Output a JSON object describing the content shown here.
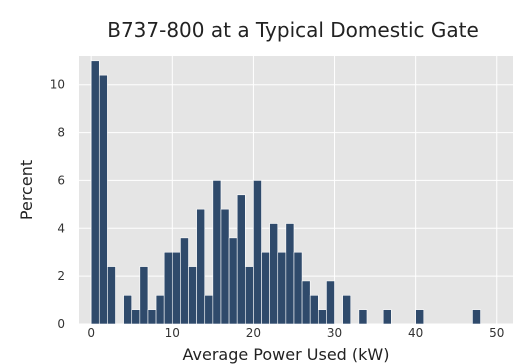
{
  "chart_data": {
    "type": "bar",
    "title": "B737-800 at a Typical Domestic Gate",
    "xlabel": "Average Power Used (kW)",
    "ylabel": "Percent",
    "xlim": [
      -1.5,
      52
    ],
    "ylim": [
      0,
      11.2
    ],
    "xticks": [
      0,
      10,
      20,
      30,
      40,
      50
    ],
    "yticks": [
      0,
      2,
      4,
      6,
      8,
      10
    ],
    "bin_width": 1,
    "grid": true,
    "background": "#e5e5e5",
    "bar_color": "#2f4a6b",
    "bins": [
      {
        "x": 0,
        "value": 11.0
      },
      {
        "x": 1,
        "value": 10.4
      },
      {
        "x": 2,
        "value": 2.4
      },
      {
        "x": 3,
        "value": 0
      },
      {
        "x": 4,
        "value": 1.2
      },
      {
        "x": 5,
        "value": 0.6
      },
      {
        "x": 6,
        "value": 2.4
      },
      {
        "x": 7,
        "value": 0.6
      },
      {
        "x": 8,
        "value": 1.2
      },
      {
        "x": 9,
        "value": 3.0
      },
      {
        "x": 10,
        "value": 3.0
      },
      {
        "x": 11,
        "value": 3.6
      },
      {
        "x": 12,
        "value": 2.4
      },
      {
        "x": 13,
        "value": 4.8
      },
      {
        "x": 14,
        "value": 1.2
      },
      {
        "x": 15,
        "value": 6.0
      },
      {
        "x": 16,
        "value": 4.8
      },
      {
        "x": 17,
        "value": 3.6
      },
      {
        "x": 18,
        "value": 5.4
      },
      {
        "x": 19,
        "value": 2.4
      },
      {
        "x": 20,
        "value": 6.0
      },
      {
        "x": 21,
        "value": 3.0
      },
      {
        "x": 22,
        "value": 4.2
      },
      {
        "x": 23,
        "value": 3.0
      },
      {
        "x": 24,
        "value": 4.2
      },
      {
        "x": 25,
        "value": 3.0
      },
      {
        "x": 26,
        "value": 1.8
      },
      {
        "x": 27,
        "value": 1.2
      },
      {
        "x": 28,
        "value": 0.6
      },
      {
        "x": 29,
        "value": 1.8
      },
      {
        "x": 30,
        "value": 0
      },
      {
        "x": 31,
        "value": 1.2
      },
      {
        "x": 32,
        "value": 0
      },
      {
        "x": 33,
        "value": 0.6
      },
      {
        "x": 34,
        "value": 0
      },
      {
        "x": 35,
        "value": 0
      },
      {
        "x": 36,
        "value": 0.6
      },
      {
        "x": 40,
        "value": 0.6
      },
      {
        "x": 47,
        "value": 0.6
      }
    ]
  }
}
